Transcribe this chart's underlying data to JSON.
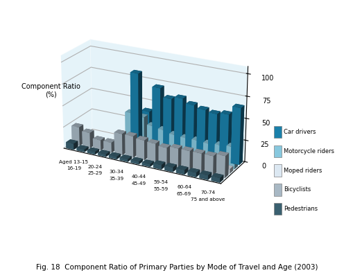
{
  "series_names": [
    "Car drivers",
    "Motorcycle riders",
    "Moped riders",
    "Bicyclists",
    "Pedestrians"
  ],
  "series_colors_face": [
    "#1a80aa",
    "#88c8de",
    "#dce8f2",
    "#a8b8c4",
    "#3a6070"
  ],
  "series_colors_side": [
    "#126080",
    "#50a0c0",
    "#b0c8d8",
    "#7898a8",
    "#244858"
  ],
  "age_labels_row1": [
    "Aged 13-15",
    "20-24",
    "30-34",
    "40-44",
    "59-54",
    "60-64",
    "70-74"
  ],
  "age_labels_row2": [
    "16-19",
    "25-29",
    "35-39",
    "45-49",
    "55-59",
    "65-69",
    "75 and above"
  ],
  "data": {
    "Car drivers": [
      0,
      0,
      0,
      0,
      82,
      40,
      70,
      60,
      63,
      58,
      55,
      53,
      55,
      65
    ],
    "Motorcycle riders": [
      0,
      0,
      0,
      0,
      40,
      38,
      30,
      28,
      25,
      24,
      24,
      23,
      24,
      25
    ],
    "Moped riders": [
      0,
      0,
      0,
      0,
      5,
      4,
      5,
      5,
      5,
      5,
      5,
      5,
      5,
      5
    ],
    "Bicyclists": [
      22,
      18,
      12,
      12,
      25,
      25,
      23,
      22,
      20,
      22,
      22,
      22,
      22,
      25
    ],
    "Pedestrians": [
      7,
      3,
      3,
      3,
      3,
      3,
      3,
      3,
      5,
      5,
      5,
      5,
      5,
      5
    ]
  },
  "ylim": [
    0,
    100
  ],
  "yticks": [
    0,
    25,
    50,
    75,
    100
  ],
  "bg_color": "#cce8f4",
  "ylabel": "Component Ratio\n(%)",
  "title": "Fig. 18  Component Ratio of Primary Parties by Mode of Travel and Age (2003)"
}
